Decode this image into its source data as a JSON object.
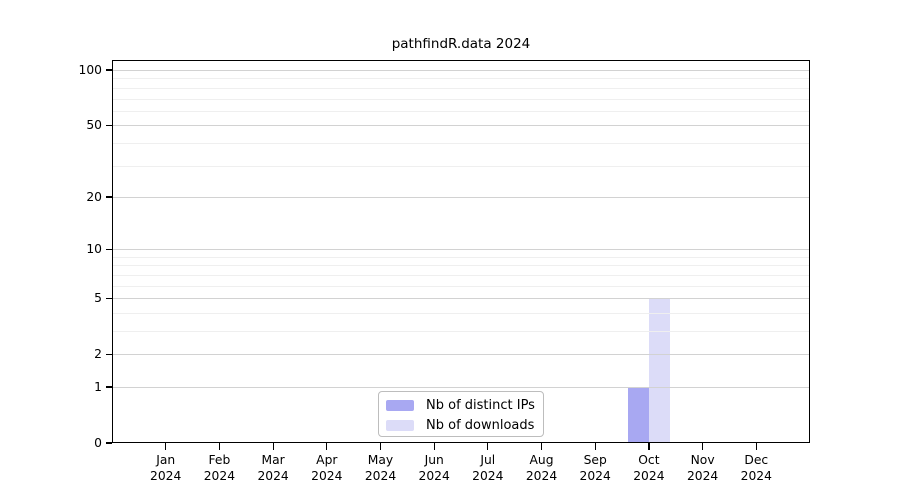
{
  "chart_data": {
    "type": "bar",
    "title": "pathfindR.data 2024",
    "x_categories": [
      {
        "month": "Jan",
        "year": "2024"
      },
      {
        "month": "Feb",
        "year": "2024"
      },
      {
        "month": "Mar",
        "year": "2024"
      },
      {
        "month": "Apr",
        "year": "2024"
      },
      {
        "month": "May",
        "year": "2024"
      },
      {
        "month": "Jun",
        "year": "2024"
      },
      {
        "month": "Jul",
        "year": "2024"
      },
      {
        "month": "Aug",
        "year": "2024"
      },
      {
        "month": "Sep",
        "year": "2024"
      },
      {
        "month": "Oct",
        "year": "2024"
      },
      {
        "month": "Nov",
        "year": "2024"
      },
      {
        "month": "Dec",
        "year": "2024"
      }
    ],
    "series": [
      {
        "name": "Nb of distinct IPs",
        "color": "#a8a8f2",
        "values": [
          0,
          0,
          0,
          0,
          0,
          0,
          0,
          0,
          0,
          1,
          0,
          0
        ]
      },
      {
        "name": "Nb of downloads",
        "color": "#dcdcf8",
        "values": [
          0,
          0,
          0,
          0,
          0,
          0,
          0,
          0,
          0,
          5,
          0,
          0
        ]
      }
    ],
    "y_axis": {
      "scale": "log1p",
      "range": [
        0,
        100
      ],
      "major_ticks": [
        0,
        1,
        2,
        5,
        10,
        20,
        50,
        100
      ],
      "minor_gridlines": [
        3,
        4,
        6,
        7,
        8,
        9,
        30,
        40,
        60,
        70,
        80,
        90
      ]
    },
    "grid": "horizontal",
    "legend_position": "bottom-center",
    "colors": {
      "major_grid": "#d2d2d2",
      "minor_grid": "#efefef",
      "axis": "#000000",
      "background": "#ffffff"
    }
  }
}
